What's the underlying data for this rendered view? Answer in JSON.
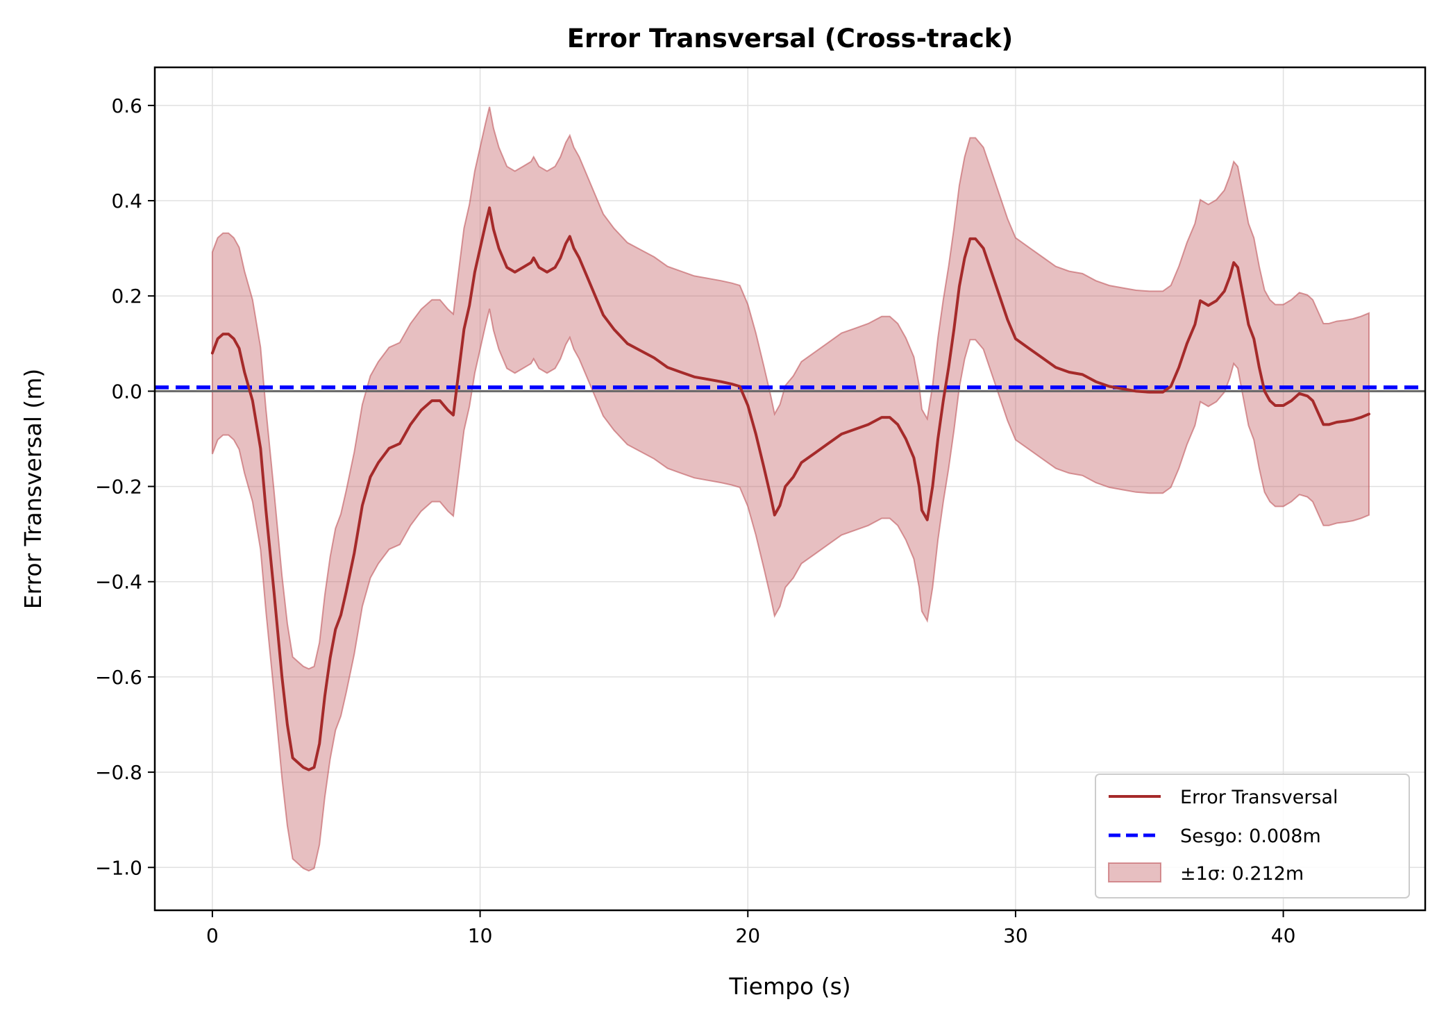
{
  "chart_data": {
    "type": "line",
    "title": "Error Transversal (Cross-track)",
    "xlabel": "Tiempo (s)",
    "ylabel": "Error Transversal (m)",
    "xlim": [
      -2.15,
      45.3
    ],
    "ylim": [
      -1.09,
      0.68
    ],
    "xticks": [
      0,
      10,
      20,
      30,
      40
    ],
    "xtick_labels": [
      "0",
      "10",
      "20",
      "30",
      "40"
    ],
    "yticks": [
      0.6,
      0.4,
      0.2,
      0.0,
      -0.2,
      -0.4,
      -0.6,
      -0.8,
      -1.0
    ],
    "ytick_labels": [
      "0.6",
      "0.4",
      "0.2",
      "0.0",
      "−0.2",
      "−0.4",
      "−0.6",
      "−0.8",
      "−1.0"
    ],
    "grid": true,
    "legend_position": "lower-right",
    "colors": {
      "error": "#a52a2a",
      "bias": "#0000ff",
      "band": "#c0565c",
      "zero_line": "#666666",
      "grid": "#e0e0e0"
    },
    "bias": 0.008,
    "sigma": 0.212,
    "legend": [
      "Error Transversal",
      "Sesgo: 0.008m",
      "±1σ: 0.212m"
    ],
    "series": [
      {
        "name": "Error Transversal",
        "x": [
          0,
          0.2,
          0.4,
          0.6,
          0.8,
          1.0,
          1.2,
          1.5,
          1.8,
          2.0,
          2.3,
          2.6,
          2.8,
          3.0,
          3.2,
          3.4,
          3.6,
          3.8,
          4.0,
          4.2,
          4.4,
          4.6,
          4.8,
          5.0,
          5.3,
          5.6,
          5.9,
          6.2,
          6.6,
          7.0,
          7.4,
          7.8,
          8.2,
          8.5,
          8.8,
          9.0,
          9.2,
          9.4,
          9.6,
          9.8,
          10.0,
          10.2,
          10.35,
          10.5,
          10.7,
          11.0,
          11.3,
          11.6,
          11.9,
          12.0,
          12.2,
          12.5,
          12.8,
          13.0,
          13.2,
          13.35,
          13.5,
          13.7,
          14.0,
          14.3,
          14.6,
          15.0,
          15.5,
          16.0,
          16.5,
          17.0,
          17.5,
          18.0,
          18.5,
          19.0,
          19.4,
          19.7,
          20.0,
          20.3,
          20.6,
          20.85,
          21.0,
          21.2,
          21.4,
          21.7,
          22.0,
          22.5,
          23.0,
          23.5,
          24.0,
          24.5,
          25.0,
          25.3,
          25.6,
          25.9,
          26.2,
          26.4,
          26.5,
          26.7,
          26.9,
          27.1,
          27.3,
          27.5,
          27.7,
          27.9,
          28.1,
          28.3,
          28.5,
          28.8,
          29.1,
          29.4,
          29.7,
          30.0,
          30.5,
          31.0,
          31.5,
          32.0,
          32.5,
          33.0,
          33.5,
          34.0,
          34.5,
          35.0,
          35.5,
          35.8,
          36.1,
          36.4,
          36.7,
          36.9,
          37.2,
          37.5,
          37.8,
          38.0,
          38.15,
          38.3,
          38.5,
          38.7,
          38.9,
          39.1,
          39.3,
          39.5,
          39.7,
          40.0,
          40.3,
          40.6,
          40.9,
          41.1,
          41.3,
          41.5,
          41.7,
          42.0,
          42.3,
          42.6,
          42.9,
          43.2
        ],
        "y": [
          0.08,
          0.11,
          0.12,
          0.12,
          0.11,
          0.09,
          0.04,
          -0.02,
          -0.12,
          -0.25,
          -0.42,
          -0.6,
          -0.7,
          -0.77,
          -0.78,
          -0.79,
          -0.795,
          -0.79,
          -0.74,
          -0.64,
          -0.56,
          -0.5,
          -0.47,
          -0.42,
          -0.34,
          -0.24,
          -0.18,
          -0.15,
          -0.12,
          -0.11,
          -0.07,
          -0.04,
          -0.02,
          -0.02,
          -0.04,
          -0.05,
          0.04,
          0.13,
          0.18,
          0.25,
          0.3,
          0.35,
          0.385,
          0.34,
          0.3,
          0.26,
          0.25,
          0.26,
          0.27,
          0.28,
          0.26,
          0.25,
          0.26,
          0.28,
          0.31,
          0.325,
          0.3,
          0.28,
          0.24,
          0.2,
          0.16,
          0.13,
          0.1,
          0.085,
          0.07,
          0.05,
          0.04,
          0.03,
          0.025,
          0.02,
          0.015,
          0.01,
          -0.03,
          -0.09,
          -0.16,
          -0.22,
          -0.26,
          -0.24,
          -0.2,
          -0.18,
          -0.15,
          -0.13,
          -0.11,
          -0.09,
          -0.08,
          -0.07,
          -0.055,
          -0.055,
          -0.07,
          -0.1,
          -0.14,
          -0.2,
          -0.25,
          -0.27,
          -0.2,
          -0.1,
          -0.02,
          0.05,
          0.13,
          0.22,
          0.28,
          0.32,
          0.32,
          0.3,
          0.25,
          0.2,
          0.15,
          0.11,
          0.09,
          0.07,
          0.05,
          0.04,
          0.035,
          0.02,
          0.01,
          0.005,
          0.0,
          -0.002,
          -0.002,
          0.01,
          0.05,
          0.1,
          0.14,
          0.19,
          0.18,
          0.19,
          0.21,
          0.24,
          0.27,
          0.26,
          0.2,
          0.14,
          0.11,
          0.05,
          0.0,
          -0.02,
          -0.03,
          -0.03,
          -0.02,
          -0.005,
          -0.01,
          -0.02,
          -0.045,
          -0.07,
          -0.07,
          -0.065,
          -0.063,
          -0.06,
          -0.055,
          -0.048
        ]
      },
      {
        "name": "Sesgo: 0.008m",
        "x": [
          -2.15,
          45.3
        ],
        "y": [
          0.008,
          0.008
        ]
      },
      {
        "name": "±1σ: 0.212m",
        "offset": 0.212
      }
    ]
  }
}
